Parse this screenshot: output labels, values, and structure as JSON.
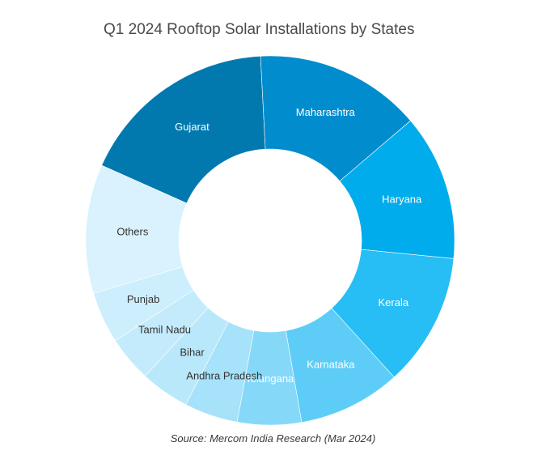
{
  "chart_data": {
    "type": "pie",
    "title": "Q1 2024 Rooftop Solar Installations by States",
    "source": "Source: Mercom India Research (Mar 2024)",
    "legend": "none",
    "labels": [
      "Gujarat",
      "Maharashtra",
      "Haryana",
      "Kerala",
      "Karnataka",
      "Telangana",
      "Andhra Pradesh",
      "Bihar",
      "Tamil Nadu",
      "Punjab",
      "Others"
    ],
    "values": [
      17.5,
      14.6,
      12.8,
      11.7,
      9.0,
      5.6,
      4.7,
      4.3,
      4.0,
      4.5,
      11.3
    ],
    "unit": "%",
    "colors": [
      "#0179ae",
      "#018ccd",
      "#00acec",
      "#27bdf5",
      "#5dcdf8",
      "#86d8f9",
      "#a6e2fa",
      "#b9e8fb",
      "#c3ebfb",
      "#cdeefc",
      "#d9f2fd"
    ],
    "label_colors": [
      "#ffffff",
      "#ffffff",
      "#ffffff",
      "#ffffff",
      "#ffffff",
      "#ffffff",
      "#333333",
      "#333333",
      "#333333",
      "#333333",
      "#333333"
    ]
  }
}
